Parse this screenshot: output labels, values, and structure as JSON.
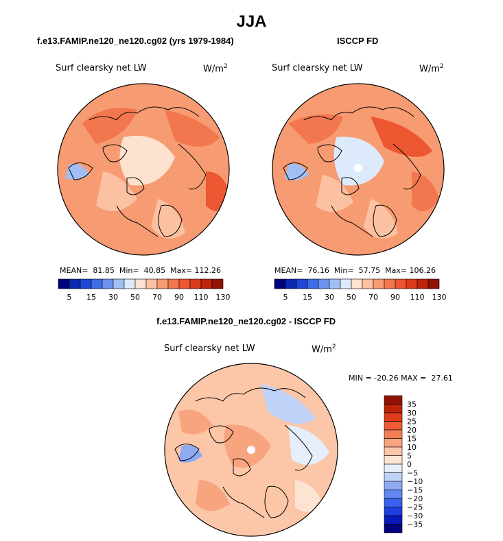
{
  "title": "JJA",
  "panels": [
    {
      "title": "f.e13.FAMIP.ne120_ne120.cg02 (yrs 1979-1984)",
      "variable": "Surf clearsky net LW",
      "units": "W/m",
      "units_sup": "2",
      "stats": {
        "mean": "81.85",
        "min": "40.85",
        "max": "112.26"
      },
      "stats_text": "MEAN=  81.85  Min=  40.85  Max= 112.26"
    },
    {
      "title": "ISCCP FD",
      "variable": "Surf clearsky net LW",
      "units": "W/m",
      "units_sup": "2",
      "stats": {
        "mean": "76.16",
        "min": "57.75",
        "max": "106.26"
      },
      "stats_text": "MEAN=  76.16  Min=  57.75  Max= 106.26"
    },
    {
      "title": "f.e13.FAMIP.ne120_ne120.cg02 - ISCCP FD",
      "variable": "Surf clearsky net LW",
      "units": "W/m",
      "units_sup": "2",
      "stats": {
        "min": "-20.26",
        "max": "27.61"
      },
      "stats_text": "MIN = -20.26 MAX =  27.61"
    }
  ],
  "colorbar_abs": {
    "colors": [
      "#000080",
      "#0c2ab0",
      "#1c48d2",
      "#3e6ce8",
      "#6c92f0",
      "#a2bff5",
      "#dceafb",
      "#fde2cf",
      "#fbc1a0",
      "#f79b72",
      "#f3774e",
      "#ec5630",
      "#dd3b1b",
      "#bd2409",
      "#901204"
    ],
    "tick_labels": [
      "5",
      "15",
      "30",
      "50",
      "70",
      "90",
      "110",
      "130"
    ],
    "tick_positions": [
      1,
      3,
      5,
      7,
      9,
      11,
      13,
      15
    ]
  },
  "colorbar_diff": {
    "colors": [
      "#000080",
      "#0a1ab8",
      "#1d3fe0",
      "#3a62ee",
      "#6086f0",
      "#8eaaf3",
      "#c0d2f8",
      "#e6eefb",
      "#fde4d2",
      "#fbc7a8",
      "#f8a47f",
      "#f47f57",
      "#ee5c35",
      "#dd3d1b",
      "#bd2409",
      "#901204"
    ],
    "tick_labels": [
      "35",
      "30",
      "25",
      "20",
      "15",
      "10",
      "5",
      "0",
      "−5",
      "−10",
      "−15",
      "−20",
      "−25",
      "−30",
      "−35"
    ]
  },
  "map_colors": {
    "very_low": "#a2bff5",
    "low": "#dceafb",
    "neutral": "#fde2cf",
    "light": "#fbc1a0",
    "medium": "#f79b72",
    "high": "#f3774e",
    "very_high": "#ec5630",
    "diff_pos_light": "#fde4d2",
    "diff_pos": "#fbc7a8",
    "diff_pos_med": "#f8a47f",
    "diff_neg_light": "#e6eefb",
    "diff_neg": "#c0d2f8",
    "diff_neg_med": "#8eaaf3"
  }
}
